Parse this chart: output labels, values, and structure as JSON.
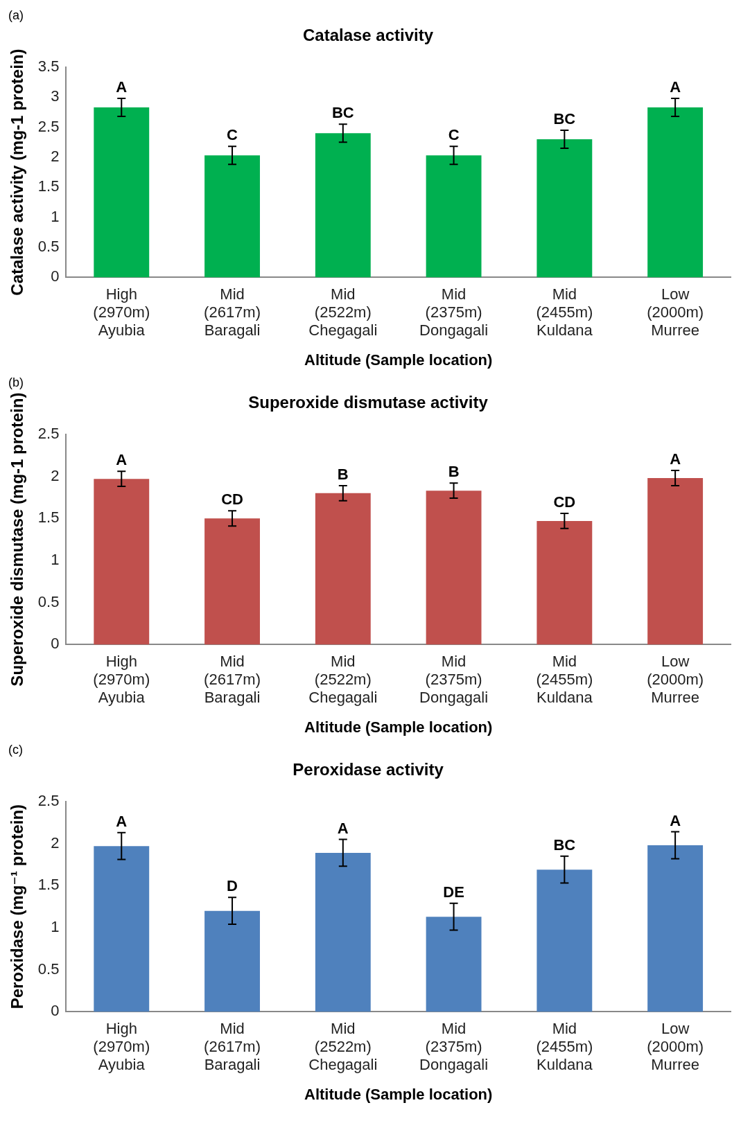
{
  "chart_data": [
    {
      "type": "bar",
      "title": "Catalase activity",
      "xlabel": "Altitude (Sample location)",
      "ylabel": "Catalase activity (mg-1 protein)",
      "categories": [
        "High (2970m) Ayubia",
        "Mid (2617m) Baragali",
        "Mid (2522m) Chegagali",
        "Mid (2375m) Dongagali",
        "Mid (2455m) Kuldana",
        "Low (2000m) Murree"
      ],
      "values": [
        2.83,
        2.03,
        2.4,
        2.03,
        2.3,
        2.83
      ],
      "errors": [
        0.15,
        0.15,
        0.15,
        0.15,
        0.15,
        0.15
      ],
      "color": "#00b050",
      "ylim": [
        0,
        3.5
      ],
      "yticks": [
        0,
        0.5,
        1,
        1.5,
        2,
        2.5,
        3,
        3.5
      ],
      "grid": false,
      "legend": false,
      "annotations": [
        "(a)",
        {
          "text": "A",
          "x": "High (2970m) Ayubia",
          "y": 2.98
        },
        {
          "text": "C",
          "x": "Mid (2617m) Baragali",
          "y": 2.18
        },
        {
          "text": "BC",
          "x": "Mid (2522m) Chegagali",
          "y": 2.55
        },
        {
          "text": "C",
          "x": "Mid (2375m) Dongagali",
          "y": 2.18
        },
        {
          "text": "BC",
          "x": "Mid (2455m) Kuldana",
          "y": 2.45
        },
        {
          "text": "A",
          "x": "Low (2000m) Murree",
          "y": 2.98
        }
      ]
    },
    {
      "type": "bar",
      "title": "Superoxide dismutase activity",
      "xlabel": "Altitude (Sample location)",
      "ylabel": "Superoxide dismutase (mg-1 protein)",
      "categories": [
        "High (2970m) Ayubia",
        "Mid (2617m) Baragali",
        "Mid (2522m) Chegagali",
        "Mid (2375m) Dongagali",
        "Mid (2455m) Kuldana",
        "Low (2000m) Murree"
      ],
      "values": [
        1.97,
        1.5,
        1.8,
        1.83,
        1.47,
        1.98
      ],
      "errors": [
        0.09,
        0.09,
        0.09,
        0.09,
        0.09,
        0.09
      ],
      "color": "#c0504d",
      "ylim": [
        0,
        2.5
      ],
      "yticks": [
        0,
        0.5,
        1,
        1.5,
        2,
        2.5
      ],
      "grid": false,
      "legend": false,
      "annotations": [
        "(b)",
        {
          "text": "A",
          "x": "High (2970m) Ayubia",
          "y": 2.06
        },
        {
          "text": "CD",
          "x": "Mid (2617m) Baragali",
          "y": 1.59
        },
        {
          "text": "B",
          "x": "Mid (2522m) Chegagali",
          "y": 1.89
        },
        {
          "text": "B",
          "x": "Mid (2375m) Dongagali",
          "y": 1.92
        },
        {
          "text": "CD",
          "x": "Mid (2455m) Kuldana",
          "y": 1.56
        },
        {
          "text": "A",
          "x": "Low (2000m) Murree",
          "y": 2.07
        }
      ]
    },
    {
      "type": "bar",
      "title": "Peroxidase activity",
      "xlabel": "Altitude (Sample location)",
      "ylabel": "Peroxidase (mg⁻¹ protein)",
      "categories": [
        "High (2970m) Ayubia",
        "Mid (2617m) Baragali",
        "Mid (2522m) Chegagali",
        "Mid (2375m) Dongagali",
        "Mid (2455m) Kuldana",
        "Low (2000m) Murree"
      ],
      "values": [
        1.97,
        1.2,
        1.89,
        1.13,
        1.69,
        1.98
      ],
      "errors": [
        0.16,
        0.16,
        0.16,
        0.16,
        0.16,
        0.16
      ],
      "color": "#4f81bd",
      "ylim": [
        0,
        2.5
      ],
      "yticks": [
        0,
        0.5,
        1,
        1.5,
        2,
        2.5
      ],
      "grid": false,
      "legend": false,
      "annotations": [
        "(c)",
        {
          "text": "A",
          "x": "High (2970m) Ayubia",
          "y": 2.13
        },
        {
          "text": "D",
          "x": "Mid (2617m) Baragali",
          "y": 1.36
        },
        {
          "text": "A",
          "x": "Mid (2522m) Chegagali",
          "y": 2.05
        },
        {
          "text": "DE",
          "x": "Mid (2375m) Dongagali",
          "y": 1.29
        },
        {
          "text": "BC",
          "x": "Mid (2455m) Kuldana",
          "y": 1.85
        },
        {
          "text": "A",
          "x": "Low (2000m) Murree",
          "y": 2.14
        }
      ]
    }
  ]
}
